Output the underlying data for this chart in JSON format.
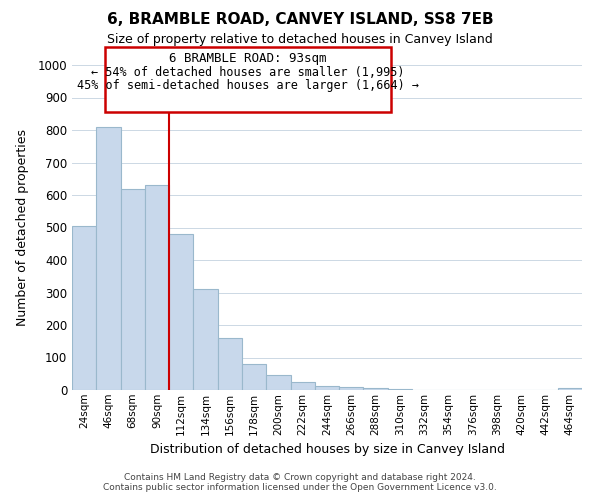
{
  "title": "6, BRAMBLE ROAD, CANVEY ISLAND, SS8 7EB",
  "subtitle": "Size of property relative to detached houses in Canvey Island",
  "xlabel": "Distribution of detached houses by size in Canvey Island",
  "ylabel": "Number of detached properties",
  "bar_color": "#c8d8eb",
  "bar_edge_color": "#9ab8cc",
  "categories": [
    "24sqm",
    "46sqm",
    "68sqm",
    "90sqm",
    "112sqm",
    "134sqm",
    "156sqm",
    "178sqm",
    "200sqm",
    "222sqm",
    "244sqm",
    "266sqm",
    "288sqm",
    "310sqm",
    "332sqm",
    "354sqm",
    "376sqm",
    "398sqm",
    "420sqm",
    "442sqm",
    "464sqm"
  ],
  "values": [
    505,
    810,
    620,
    630,
    480,
    310,
    160,
    80,
    47,
    25,
    12,
    10,
    5,
    2,
    1,
    0,
    0,
    0,
    0,
    0,
    5
  ],
  "ylim": [
    0,
    1000
  ],
  "yticks": [
    0,
    100,
    200,
    300,
    400,
    500,
    600,
    700,
    800,
    900,
    1000
  ],
  "vline_pos": 3.5,
  "vline_color": "#cc0000",
  "annotation_title": "6 BRAMBLE ROAD: 93sqm",
  "annotation_line1": "← 54% of detached houses are smaller (1,995)",
  "annotation_line2": "45% of semi-detached houses are larger (1,664) →",
  "annotation_box_color": "#ffffff",
  "annotation_box_edge": "#cc0000",
  "footer_line1": "Contains HM Land Registry data © Crown copyright and database right 2024.",
  "footer_line2": "Contains public sector information licensed under the Open Government Licence v3.0.",
  "background_color": "#ffffff",
  "grid_color": "#ccd8e4"
}
